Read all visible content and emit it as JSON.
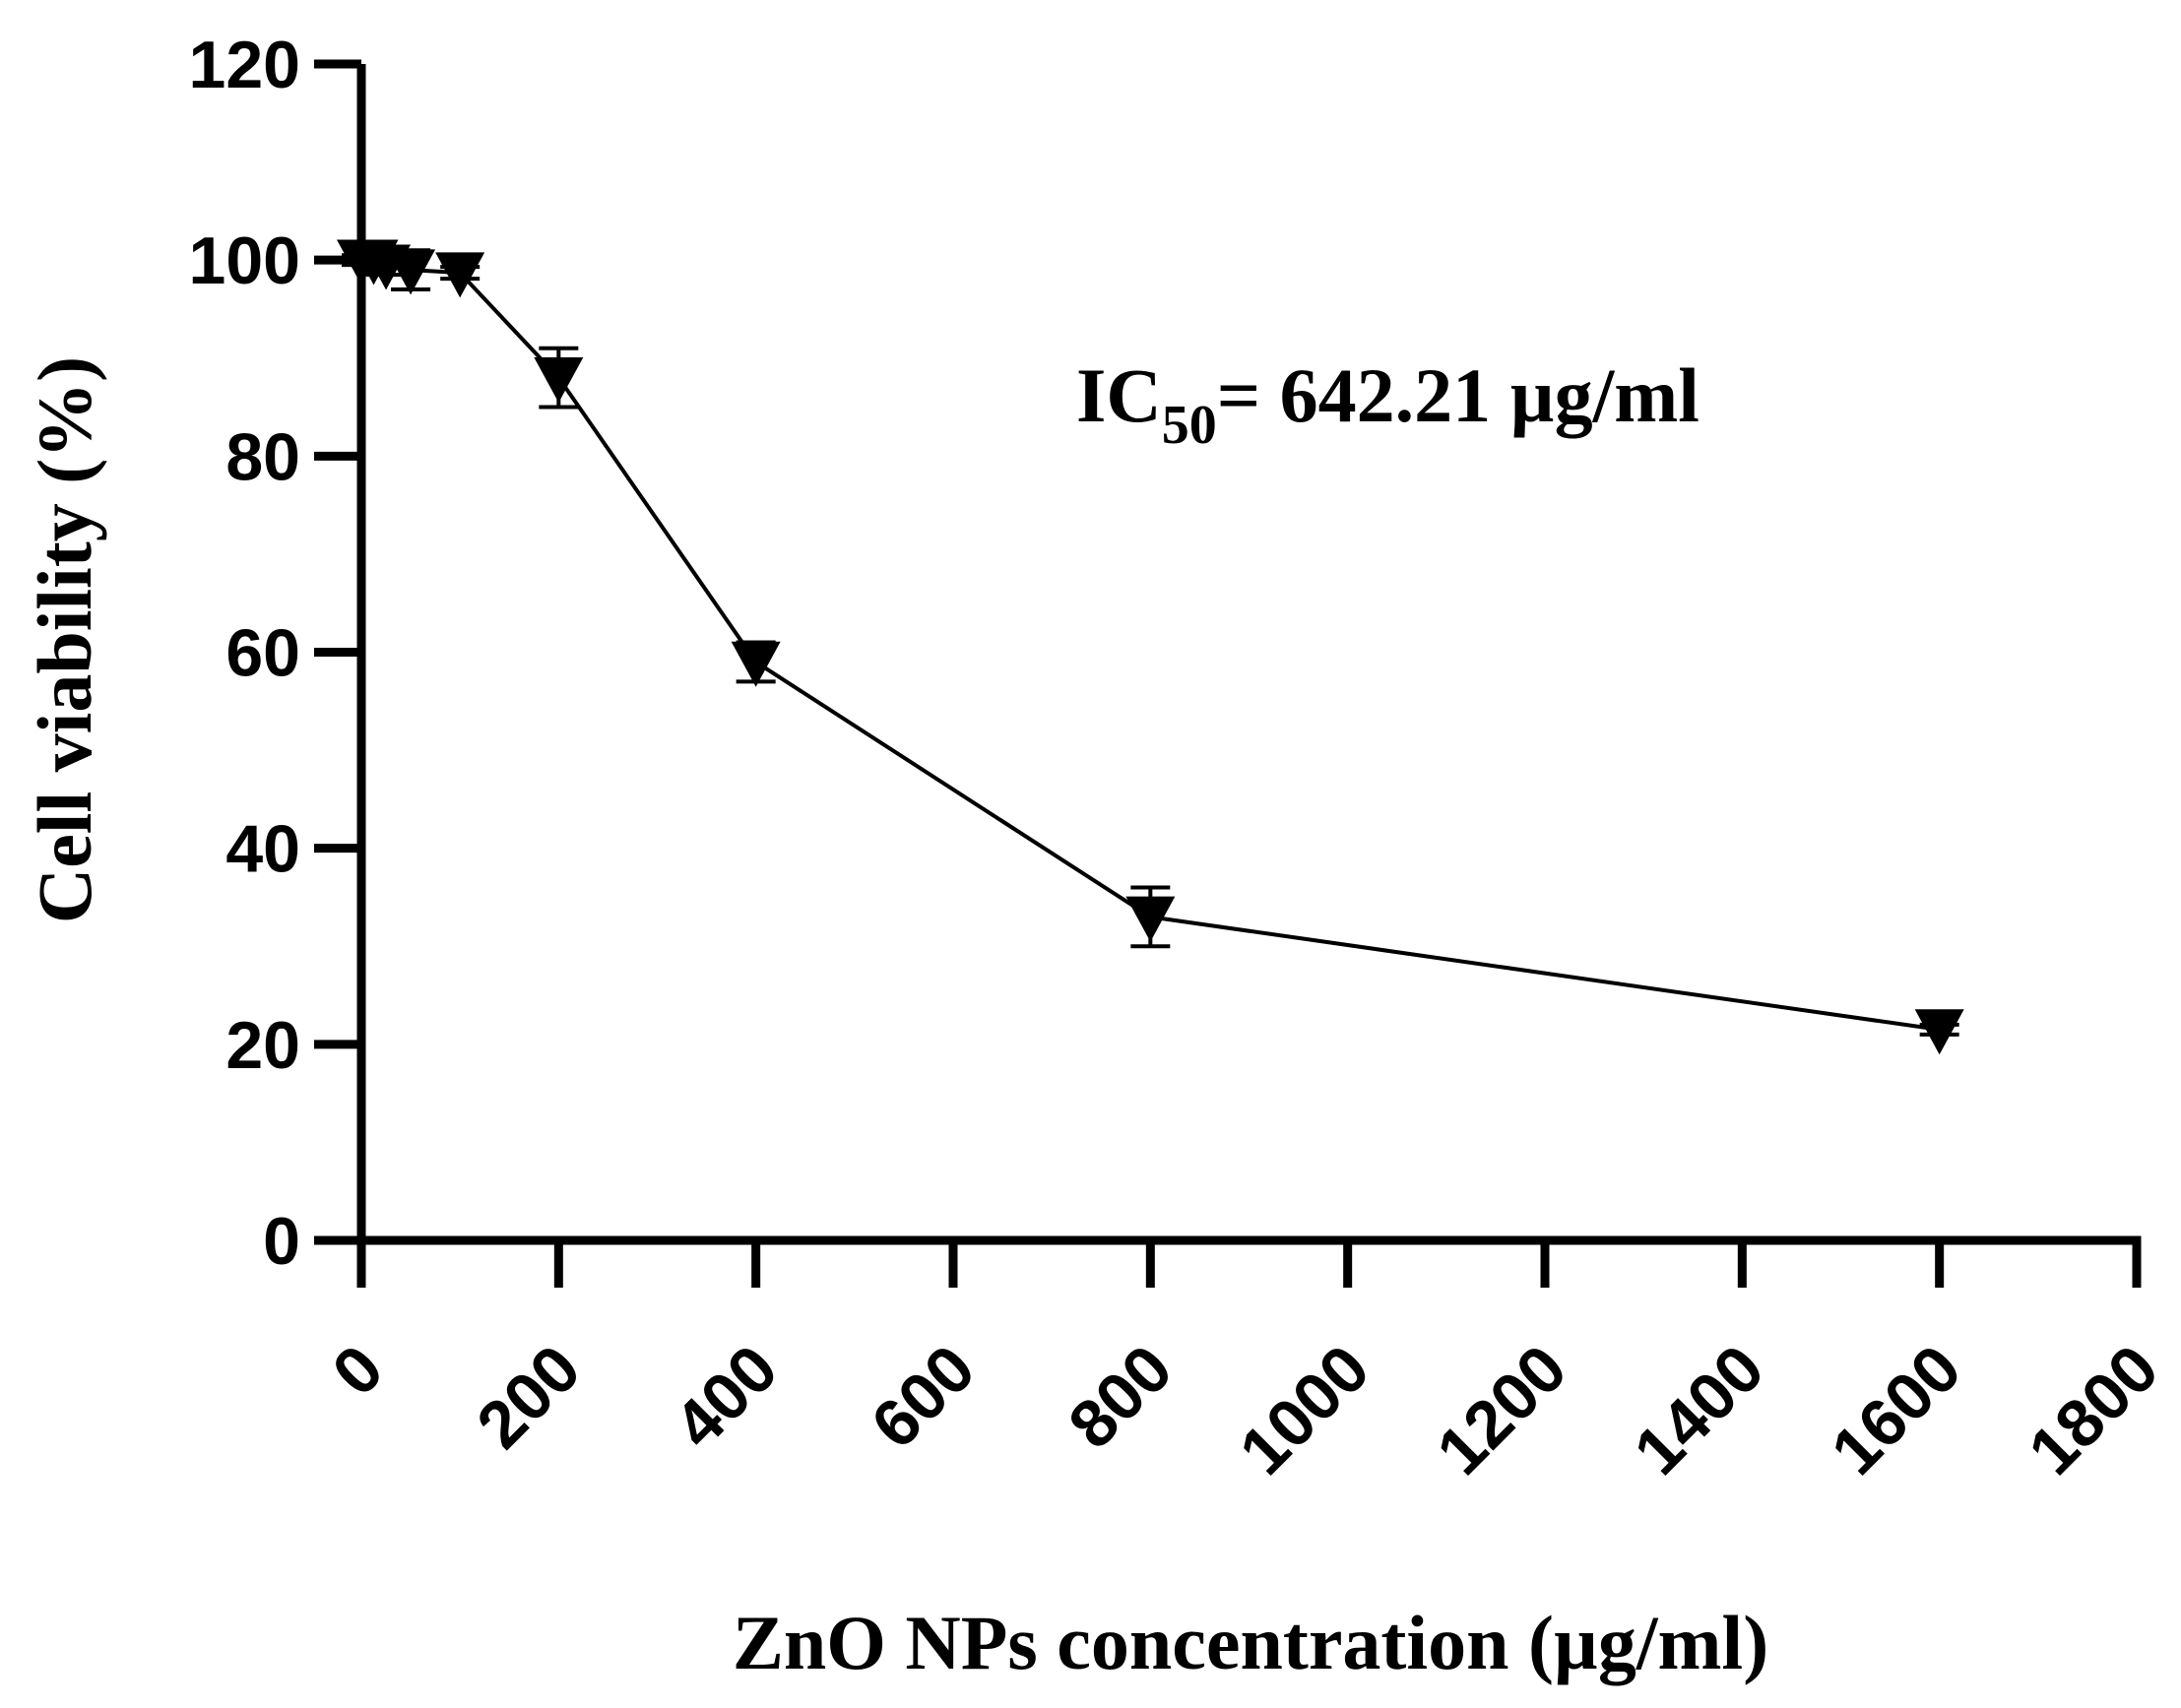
{
  "chart_data": {
    "type": "line",
    "title": "",
    "xlabel": "ZnO NPs concentration (µg/ml)",
    "ylabel": "Cell viability (%)",
    "xlim": [
      0,
      1800
    ],
    "ylim": [
      0,
      120
    ],
    "xticks": [
      0,
      200,
      400,
      600,
      800,
      1000,
      1200,
      1400,
      1600,
      1800
    ],
    "yticks": [
      0,
      20,
      40,
      60,
      80,
      100,
      120
    ],
    "xtick_labels": [
      "0",
      "200",
      "400",
      "600",
      "800",
      "1000",
      "1200",
      "1400",
      "1600",
      "1800"
    ],
    "ytick_labels": [
      "0",
      "20",
      "40",
      "60",
      "80",
      "100",
      "120"
    ],
    "series": [
      {
        "name": "ZnO NPs",
        "marker": "triangle-down",
        "x": [
          0,
          12.5,
          25,
          50,
          100,
          200,
          400,
          800,
          1600
        ],
        "y": [
          100,
          100,
          99.5,
          99,
          98.7,
          88,
          59,
          33,
          21.5
        ],
        "err": [
          0.5,
          0.8,
          1.0,
          2.0,
          0.6,
          3.0,
          2.0,
          3.0,
          0.5
        ]
      }
    ],
    "annotation": {
      "prefix": "IC",
      "subscript": "50",
      "suffix": "= 642.21 µg/ml"
    },
    "grid": false,
    "legend": "none"
  },
  "colors": {
    "line": "#000000",
    "marker": "#000000",
    "background": "#ffffff"
  }
}
